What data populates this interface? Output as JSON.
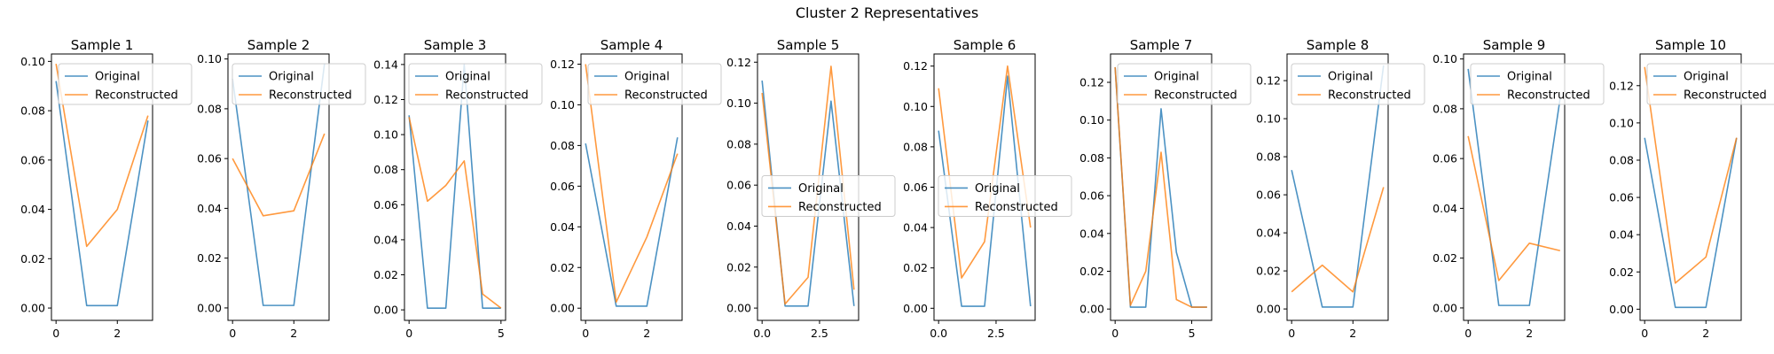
{
  "figure_title": "Cluster 2 Representatives",
  "colors": {
    "original": "#1f77b4",
    "reconstructed": "#ff7f0e"
  },
  "legend_labels": [
    "Original",
    "Reconstructed"
  ],
  "chart_data": [
    {
      "type": "line",
      "title": "Sample 1",
      "xlim": [
        -0.15,
        3.15
      ],
      "ylim": [
        -0.005,
        0.103
      ],
      "xticks": [
        0,
        2
      ],
      "xtick_labels": [
        "0",
        "2"
      ],
      "yticks": [
        0,
        0.02,
        0.04,
        0.06,
        0.08,
        0.1
      ],
      "ytick_labels": [
        "0.00",
        "0.02",
        "0.04",
        "0.06",
        "0.08",
        "0.10"
      ],
      "legend": "upper-right",
      "series": [
        {
          "name": "Original",
          "x": [
            0,
            1,
            2,
            3
          ],
          "y": [
            0.092,
            0.001,
            0.001,
            0.076
          ]
        },
        {
          "name": "Reconstructed",
          "x": [
            0,
            1,
            2,
            3
          ],
          "y": [
            0.099,
            0.025,
            0.04,
            0.078
          ]
        }
      ]
    },
    {
      "type": "line",
      "title": "Sample 2",
      "xlim": [
        -0.15,
        3.15
      ],
      "ylim": [
        -0.005,
        0.102
      ],
      "xticks": [
        0,
        2
      ],
      "xtick_labels": [
        "0",
        "2"
      ],
      "yticks": [
        0,
        0.02,
        0.04,
        0.06,
        0.08,
        0.1
      ],
      "ytick_labels": [
        "0.00",
        "0.02",
        "0.04",
        "0.06",
        "0.08",
        "0.10"
      ],
      "legend": "upper-left",
      "series": [
        {
          "name": "Original",
          "x": [
            0,
            1,
            2,
            3
          ],
          "y": [
            0.092,
            0.001,
            0.001,
            0.098
          ]
        },
        {
          "name": "Reconstructed",
          "x": [
            0,
            1,
            2,
            3
          ],
          "y": [
            0.06,
            0.037,
            0.039,
            0.07
          ]
        }
      ]
    },
    {
      "type": "line",
      "title": "Sample 3",
      "xlim": [
        -0.25,
        5.25
      ],
      "ylim": [
        -0.006,
        0.146
      ],
      "xticks": [
        0,
        5
      ],
      "xtick_labels": [
        "0",
        "5"
      ],
      "yticks": [
        0,
        0.02,
        0.04,
        0.06,
        0.08,
        0.1,
        0.12,
        0.14
      ],
      "ytick_labels": [
        "0.00",
        "0.02",
        "0.04",
        "0.06",
        "0.08",
        "0.10",
        "0.12",
        "0.14"
      ],
      "legend": "upper-left",
      "series": [
        {
          "name": "Original",
          "x": [
            0,
            1,
            2,
            3,
            4,
            5
          ],
          "y": [
            0.111,
            0.001,
            0.001,
            0.14,
            0.001,
            0.001
          ]
        },
        {
          "name": "Reconstructed",
          "x": [
            0,
            1,
            2,
            3,
            4,
            5
          ],
          "y": [
            0.11,
            0.062,
            0.071,
            0.085,
            0.009,
            0.001
          ]
        }
      ]
    },
    {
      "type": "line",
      "title": "Sample 4",
      "xlim": [
        -0.15,
        3.15
      ],
      "ylim": [
        -0.006,
        0.125
      ],
      "xticks": [
        0,
        2
      ],
      "xtick_labels": [
        "0",
        "2"
      ],
      "yticks": [
        0,
        0.02,
        0.04,
        0.06,
        0.08,
        0.1,
        0.12
      ],
      "ytick_labels": [
        "0.00",
        "0.02",
        "0.04",
        "0.06",
        "0.08",
        "0.10",
        "0.12"
      ],
      "legend": "upper-right",
      "series": [
        {
          "name": "Original",
          "x": [
            0,
            1,
            2,
            3
          ],
          "y": [
            0.081,
            0.001,
            0.001,
            0.084
          ]
        },
        {
          "name": "Reconstructed",
          "x": [
            0,
            1,
            2,
            3
          ],
          "y": [
            0.12,
            0.003,
            0.035,
            0.076
          ]
        }
      ]
    },
    {
      "type": "line",
      "title": "Sample 5",
      "xlim": [
        -0.2,
        4.2
      ],
      "ylim": [
        -0.006,
        0.124
      ],
      "xticks": [
        0,
        2.5
      ],
      "xtick_labels": [
        "0.0",
        "2.5"
      ],
      "yticks": [
        0,
        0.02,
        0.04,
        0.06,
        0.08,
        0.1,
        0.12
      ],
      "ytick_labels": [
        "0.00",
        "0.02",
        "0.04",
        "0.06",
        "0.08",
        "0.10",
        "0.12"
      ],
      "legend": "center-left",
      "series": [
        {
          "name": "Original",
          "x": [
            0,
            1,
            2,
            3,
            4
          ],
          "y": [
            0.111,
            0.001,
            0.001,
            0.101,
            0.001
          ]
        },
        {
          "name": "Reconstructed",
          "x": [
            0,
            1,
            2,
            3,
            4
          ],
          "y": [
            0.105,
            0.002,
            0.015,
            0.118,
            0.009
          ]
        }
      ]
    },
    {
      "type": "line",
      "title": "Sample 6",
      "xlim": [
        -0.2,
        4.2
      ],
      "ylim": [
        -0.006,
        0.126
      ],
      "xticks": [
        0,
        2.5
      ],
      "xtick_labels": [
        "0.0",
        "2.5"
      ],
      "yticks": [
        0,
        0.02,
        0.04,
        0.06,
        0.08,
        0.1,
        0.12
      ],
      "ytick_labels": [
        "0.00",
        "0.02",
        "0.04",
        "0.06",
        "0.08",
        "0.10",
        "0.12"
      ],
      "legend": "center-left",
      "series": [
        {
          "name": "Original",
          "x": [
            0,
            1,
            2,
            3,
            4
          ],
          "y": [
            0.088,
            0.001,
            0.001,
            0.115,
            0.001
          ]
        },
        {
          "name": "Reconstructed",
          "x": [
            0,
            1,
            2,
            3,
            4
          ],
          "y": [
            0.109,
            0.015,
            0.033,
            0.12,
            0.04
          ]
        }
      ]
    },
    {
      "type": "line",
      "title": "Sample 7",
      "xlim": [
        -0.3,
        6.3
      ],
      "ylim": [
        -0.006,
        0.135
      ],
      "xticks": [
        0,
        5
      ],
      "xtick_labels": [
        "0",
        "5"
      ],
      "yticks": [
        0,
        0.02,
        0.04,
        0.06,
        0.08,
        0.1,
        0.12
      ],
      "ytick_labels": [
        "0.00",
        "0.02",
        "0.04",
        "0.06",
        "0.08",
        "0.10",
        "0.12"
      ],
      "legend": "upper-right",
      "series": [
        {
          "name": "Original",
          "x": [
            0,
            1,
            2,
            3,
            4,
            5,
            6
          ],
          "y": [
            0.128,
            0.001,
            0.001,
            0.106,
            0.03,
            0.001,
            0.001
          ]
        },
        {
          "name": "Reconstructed",
          "x": [
            0,
            1,
            2,
            3,
            4,
            5,
            6
          ],
          "y": [
            0.128,
            0.002,
            0.02,
            0.083,
            0.005,
            0.001,
            0.001
          ]
        }
      ]
    },
    {
      "type": "line",
      "title": "Sample 8",
      "xlim": [
        -0.15,
        3.15
      ],
      "ylim": [
        -0.006,
        0.134
      ],
      "xticks": [
        0,
        2
      ],
      "xtick_labels": [
        "0",
        "2"
      ],
      "yticks": [
        0,
        0.02,
        0.04,
        0.06,
        0.08,
        0.1,
        0.12
      ],
      "ytick_labels": [
        "0.00",
        "0.02",
        "0.04",
        "0.06",
        "0.08",
        "0.10",
        "0.12"
      ],
      "legend": "upper-left",
      "series": [
        {
          "name": "Original",
          "x": [
            0,
            1,
            2,
            3
          ],
          "y": [
            0.073,
            0.001,
            0.001,
            0.128
          ]
        },
        {
          "name": "Reconstructed",
          "x": [
            0,
            1,
            2,
            3
          ],
          "y": [
            0.009,
            0.023,
            0.009,
            0.064
          ]
        }
      ]
    },
    {
      "type": "line",
      "title": "Sample 9",
      "xlim": [
        -0.15,
        3.15
      ],
      "ylim": [
        -0.005,
        0.102
      ],
      "xticks": [
        0,
        2
      ],
      "xtick_labels": [
        "0",
        "2"
      ],
      "yticks": [
        0,
        0.02,
        0.04,
        0.06,
        0.08,
        0.1
      ],
      "ytick_labels": [
        "0.00",
        "0.02",
        "0.04",
        "0.06",
        "0.08",
        "0.10"
      ],
      "legend": "upper-right",
      "series": [
        {
          "name": "Original",
          "x": [
            0,
            1,
            2,
            3
          ],
          "y": [
            0.096,
            0.001,
            0.001,
            0.084
          ]
        },
        {
          "name": "Reconstructed",
          "x": [
            0,
            1,
            2,
            3
          ],
          "y": [
            0.069,
            0.011,
            0.026,
            0.023
          ]
        }
      ]
    },
    {
      "type": "line",
      "title": "Sample 10",
      "xlim": [
        -0.15,
        3.15
      ],
      "ylim": [
        -0.006,
        0.137
      ],
      "xticks": [
        0,
        2
      ],
      "xtick_labels": [
        "0",
        "2"
      ],
      "yticks": [
        0,
        0.02,
        0.04,
        0.06,
        0.08,
        0.1,
        0.12
      ],
      "ytick_labels": [
        "0.00",
        "0.02",
        "0.04",
        "0.06",
        "0.08",
        "0.10",
        "0.12"
      ],
      "legend": "upper-right",
      "series": [
        {
          "name": "Original",
          "x": [
            0,
            1,
            2,
            3
          ],
          "y": [
            0.092,
            0.001,
            0.001,
            0.092
          ]
        },
        {
          "name": "Reconstructed",
          "x": [
            0,
            1,
            2,
            3
          ],
          "y": [
            0.13,
            0.014,
            0.028,
            0.092
          ]
        }
      ]
    }
  ]
}
